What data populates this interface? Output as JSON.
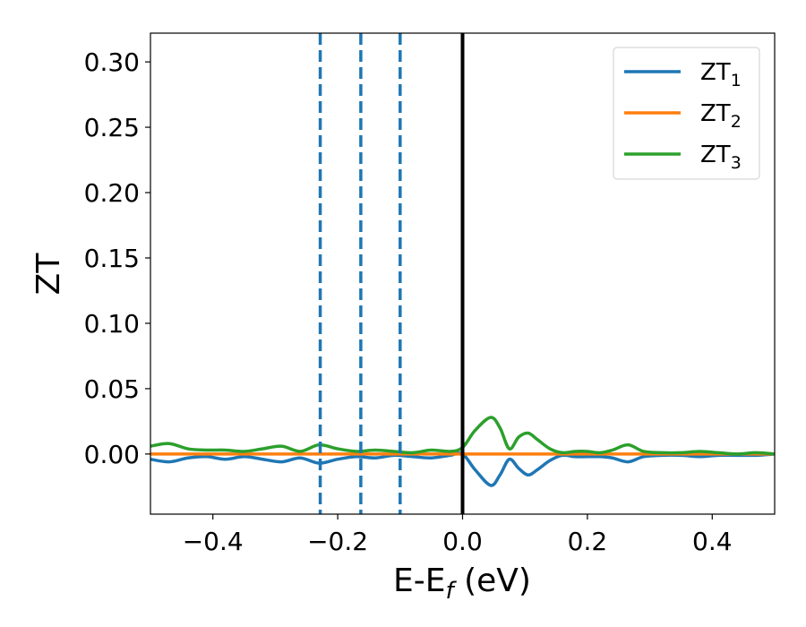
{
  "chart_data": {
    "type": "line",
    "xlabel": "E-E",
    "xlabel_sub": "f",
    "xlabel_unit": " (eV)",
    "ylabel": "ZT",
    "xlim": [
      -0.5,
      0.5
    ],
    "ylim": [
      -0.046,
      0.322
    ],
    "xticks": [
      -0.4,
      -0.2,
      0.0,
      0.2,
      0.4
    ],
    "xtick_labels": [
      "−0.4",
      "−0.2",
      "0.0",
      "0.2",
      "0.4"
    ],
    "yticks": [
      0.0,
      0.05,
      0.1,
      0.15,
      0.2,
      0.25,
      0.3
    ],
    "ytick_labels": [
      "0.00",
      "0.05",
      "0.10",
      "0.15",
      "0.20",
      "0.25",
      "0.30"
    ],
    "grid": false,
    "legend_position": "top-right",
    "series": [
      {
        "name": "ZT",
        "name_sub": "1",
        "color": "#1f77b4",
        "x": [
          -0.5,
          -0.47,
          -0.44,
          -0.41,
          -0.38,
          -0.35,
          -0.32,
          -0.29,
          -0.26,
          -0.23,
          -0.2,
          -0.17,
          -0.14,
          -0.11,
          -0.08,
          -0.05,
          -0.02,
          0.0,
          0.02,
          0.045,
          0.06,
          0.075,
          0.09,
          0.105,
          0.12,
          0.14,
          0.16,
          0.18,
          0.2,
          0.22,
          0.24,
          0.265,
          0.29,
          0.32,
          0.35,
          0.38,
          0.41,
          0.44,
          0.47,
          0.5
        ],
        "y": [
          -0.004,
          -0.006,
          -0.003,
          -0.002,
          -0.004,
          -0.002,
          -0.004,
          -0.006,
          -0.003,
          -0.007,
          -0.004,
          -0.002,
          -0.003,
          -0.001,
          -0.002,
          -0.003,
          -0.001,
          0.0,
          -0.012,
          -0.024,
          -0.016,
          -0.004,
          -0.011,
          -0.016,
          -0.012,
          -0.005,
          -0.001,
          -0.002,
          -0.002,
          -0.002,
          -0.003,
          -0.006,
          -0.002,
          -0.001,
          -0.001,
          -0.002,
          -0.001,
          -0.001,
          -0.001,
          0.0
        ]
      },
      {
        "name": "ZT",
        "name_sub": "2",
        "color": "#ff7f0e",
        "x": [
          -0.5,
          0.5
        ],
        "y": [
          0.0,
          0.0
        ]
      },
      {
        "name": "ZT",
        "name_sub": "3",
        "color": "#2ca02c",
        "x": [
          -0.5,
          -0.47,
          -0.44,
          -0.41,
          -0.38,
          -0.35,
          -0.32,
          -0.29,
          -0.26,
          -0.23,
          -0.2,
          -0.17,
          -0.14,
          -0.11,
          -0.08,
          -0.05,
          -0.02,
          0.0,
          0.02,
          0.045,
          0.06,
          0.075,
          0.09,
          0.105,
          0.12,
          0.14,
          0.16,
          0.18,
          0.2,
          0.22,
          0.24,
          0.265,
          0.29,
          0.32,
          0.35,
          0.38,
          0.41,
          0.44,
          0.47,
          0.5
        ],
        "y": [
          0.006,
          0.008,
          0.004,
          0.003,
          0.003,
          0.002,
          0.004,
          0.006,
          0.002,
          0.007,
          0.004,
          0.002,
          0.003,
          0.002,
          0.001,
          0.003,
          0.002,
          0.005,
          0.018,
          0.028,
          0.02,
          0.004,
          0.013,
          0.016,
          0.011,
          0.004,
          0.001,
          0.002,
          0.002,
          0.001,
          0.003,
          0.007,
          0.002,
          0.001,
          0.001,
          0.002,
          0.001,
          0.0,
          0.001,
          0.0
        ]
      }
    ],
    "vlines": [
      {
        "x": -0.228,
        "style": "dashed",
        "color": "#1f77b4"
      },
      {
        "x": -0.163,
        "style": "dashed",
        "color": "#1f77b4"
      },
      {
        "x": -0.1,
        "style": "dashed",
        "color": "#1f77b4"
      },
      {
        "x": 0.0,
        "style": "solid",
        "color": "#000000"
      }
    ]
  }
}
